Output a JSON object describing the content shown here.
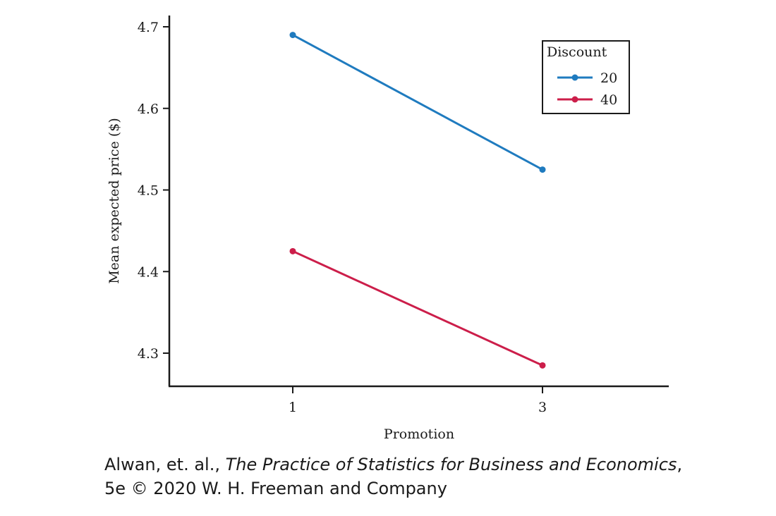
{
  "chart_data": {
    "type": "line",
    "xlabel": "Promotion",
    "ylabel": "Mean expected price ($)",
    "categories": [
      "1",
      "3"
    ],
    "y_ticks": [
      4.3,
      4.4,
      4.5,
      4.6,
      4.7
    ],
    "ylim": [
      4.265,
      4.715
    ],
    "legend": {
      "title": "Discount",
      "position": "top-right"
    },
    "grid": false,
    "series": [
      {
        "name": "20",
        "color": "#1f7bbf",
        "values": [
          4.69,
          4.525
        ]
      },
      {
        "name": "40",
        "color": "#cc1e4a",
        "values": [
          4.425,
          4.285
        ]
      }
    ]
  },
  "caption": {
    "author": "Alwan, et. al., ",
    "book_title": "The Practice of Statistics for Business and Economics",
    "after_title": ",",
    "line2": "5e © 2020 W. H. Freeman and Company"
  }
}
